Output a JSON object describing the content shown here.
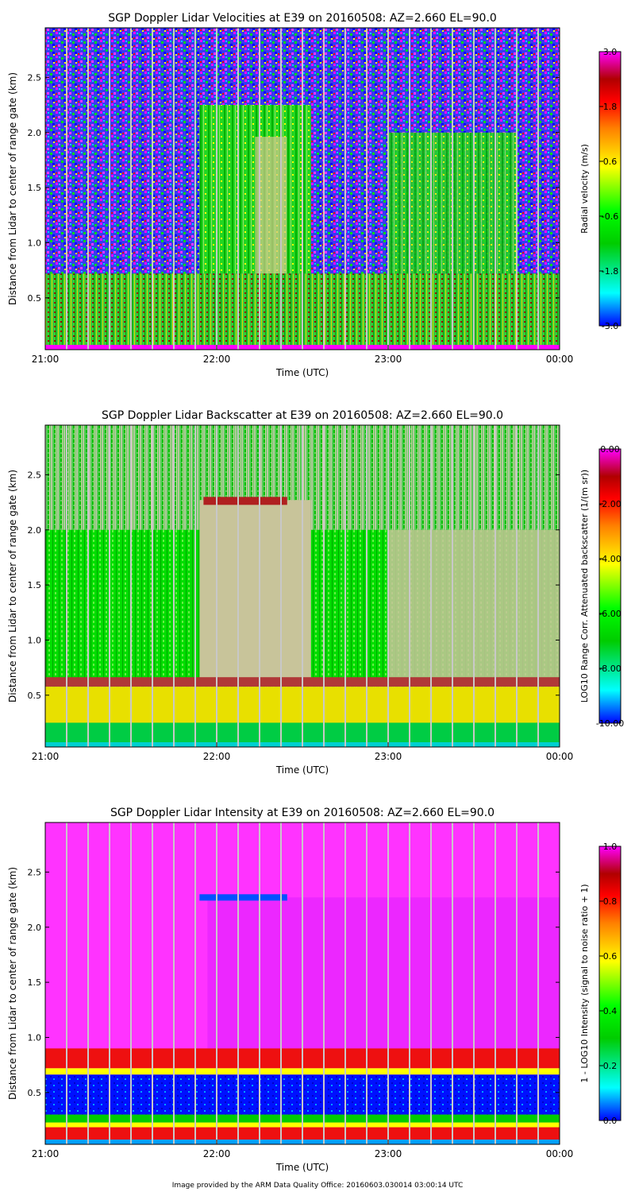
{
  "chart_data": [
    {
      "type": "heatmap",
      "title": "SGP Doppler Lidar Velocities at E39 on 20160508: AZ=2.660 EL=90.0",
      "xlabel": "Time (UTC)",
      "ylabel": "Distance from Lidar to center of range gate (km)",
      "x_ticks": [
        "21:00",
        "22:00",
        "23:00",
        "00:00"
      ],
      "y_ticks": [
        "0.5",
        "1.0",
        "1.5",
        "2.0",
        "2.5"
      ],
      "y_tick_values": [
        0.5,
        1.0,
        1.5,
        2.0,
        2.5
      ],
      "ylim": [
        0.03,
        2.95
      ],
      "xlim_hours": [
        21,
        24
      ],
      "colorbar": {
        "label": "Radial velocity (m/s)",
        "ticks": [
          "3.0",
          "1.8",
          "0.6",
          "-0.6",
          "-1.8",
          "-3.0"
        ],
        "range": [
          -3.0,
          3.0
        ]
      },
      "features": {
        "boundary_layer_top_km": 0.72,
        "cloud_top_km": 2.25,
        "cloud_start_hour": 21.9,
        "cloud_end_hour": 22.55
      }
    },
    {
      "type": "heatmap",
      "title": "SGP Doppler Lidar Backscatter at E39 on 20160508: AZ=2.660 EL=90.0",
      "xlabel": "Time (UTC)",
      "ylabel": "Distance from Lidar to center of range gate (km)",
      "x_ticks": [
        "21:00",
        "22:00",
        "23:00",
        "00:00"
      ],
      "y_ticks": [
        "0.5",
        "1.0",
        "1.5",
        "2.0",
        "2.5"
      ],
      "y_tick_values": [
        0.5,
        1.0,
        1.5,
        2.0,
        2.5
      ],
      "ylim": [
        0.03,
        2.95
      ],
      "xlim_hours": [
        21,
        24
      ],
      "colorbar": {
        "label": "LOG10 Range Corr. Attenuated backscatter (1/(m sr))",
        "ticks": [
          "0.00",
          "-2.00",
          "-4.00",
          "-6.00",
          "-8.00",
          "-10.00"
        ],
        "range": [
          -10.0,
          0.0
        ]
      },
      "features": {
        "boundary_layer_top_km": 0.62,
        "cloud_top_km": 2.27,
        "cloud_start_hour": 21.9,
        "cloud_end_hour": 22.55
      }
    },
    {
      "type": "heatmap",
      "title": "SGP Doppler Lidar Intensity at E39 on 20160508: AZ=2.660 EL=90.0",
      "xlabel": "Time (UTC)",
      "ylabel": "Distance from Lidar to center of range gate (km)",
      "x_ticks": [
        "21:00",
        "22:00",
        "23:00",
        "00:00"
      ],
      "y_ticks": [
        "0.5",
        "1.0",
        "1.5",
        "2.0",
        "2.5"
      ],
      "y_tick_values": [
        0.5,
        1.0,
        1.5,
        2.0,
        2.5
      ],
      "ylim": [
        0.03,
        2.95
      ],
      "xlim_hours": [
        21,
        24
      ],
      "colorbar": {
        "label": "1 - LOG10 Intensity (signal to noise ratio + 1)",
        "ticks": [
          "1.0",
          "0.8",
          "0.6",
          "0.4",
          "0.2",
          "0.0"
        ],
        "range": [
          0.0,
          1.0
        ]
      },
      "features": {
        "boundary_layer_top_km": 0.72,
        "cloud_top_km": 2.27,
        "cloud_start_hour": 21.9,
        "cloud_end_hour": 22.55
      }
    }
  ],
  "footer": "Image provided by the ARM Data Quality Office: 20160603.030014 03:00:14 UTC",
  "palette": {
    "rainbow": [
      "#0000ff",
      "#00ffff",
      "#00c000",
      "#00ee00",
      "#c8c890",
      "#ffff00",
      "#ff8000",
      "#ff0000",
      "#b00000",
      "#ff00ff"
    ],
    "grid_line": "#c8c8c8"
  }
}
